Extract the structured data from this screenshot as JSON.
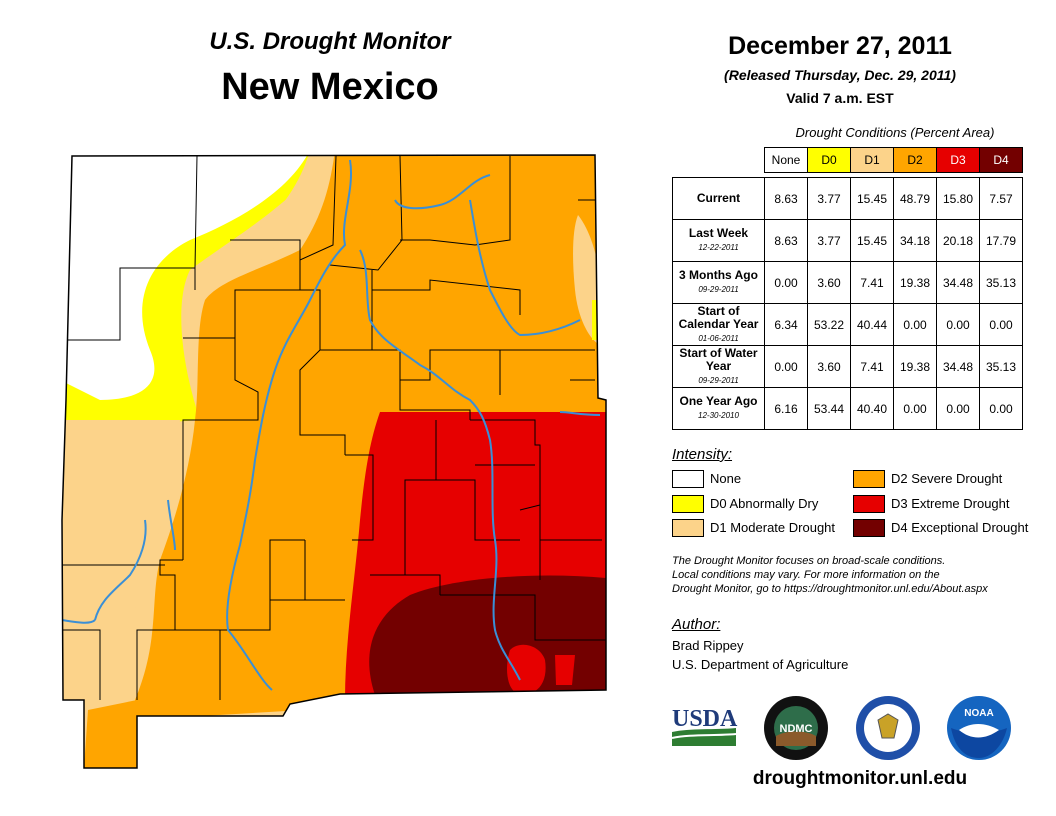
{
  "title": {
    "line1": "U.S. Drought Monitor",
    "line2": "New Mexico"
  },
  "date": {
    "main": "December 27, 2011",
    "released": "(Released Thursday, Dec. 29, 2011)",
    "valid": "Valid 7 a.m. EST"
  },
  "table": {
    "caption": "Drought Conditions (Percent Area)",
    "columns": [
      "None",
      "D0",
      "D1",
      "D2",
      "D3",
      "D4"
    ],
    "column_colors": [
      "#ffffff",
      "#ffff00",
      "#fcd38a",
      "#ffa500",
      "#e60000",
      "#730000"
    ],
    "rows": [
      {
        "label": "Current",
        "sub": "",
        "values": [
          "8.63",
          "3.77",
          "15.45",
          "48.79",
          "15.80",
          "7.57"
        ]
      },
      {
        "label": "Last Week",
        "sub": "12-22-2011",
        "values": [
          "8.63",
          "3.77",
          "15.45",
          "34.18",
          "20.18",
          "17.79"
        ]
      },
      {
        "label": "3 Months Ago",
        "sub": "09-29-2011",
        "values": [
          "0.00",
          "3.60",
          "7.41",
          "19.38",
          "34.48",
          "35.13"
        ]
      },
      {
        "label": "Start of Calendar Year",
        "sub": "01-06-2011",
        "values": [
          "6.34",
          "53.22",
          "40.44",
          "0.00",
          "0.00",
          "0.00"
        ]
      },
      {
        "label": "Start of Water Year",
        "sub": "09-29-2011",
        "values": [
          "0.00",
          "3.60",
          "7.41",
          "19.38",
          "34.48",
          "35.13"
        ]
      },
      {
        "label": "One Year Ago",
        "sub": "12-30-2010",
        "values": [
          "6.16",
          "53.44",
          "40.40",
          "0.00",
          "0.00",
          "0.00"
        ]
      }
    ]
  },
  "legend": {
    "title": "Intensity:",
    "items": [
      {
        "label": "None",
        "color": "#ffffff"
      },
      {
        "label": "D0 Abnormally Dry",
        "color": "#ffff00"
      },
      {
        "label": "D1 Moderate Drought",
        "color": "#fcd38a"
      },
      {
        "label": "D2 Severe Drought",
        "color": "#ffa500"
      },
      {
        "label": "D3 Extreme Drought",
        "color": "#e60000"
      },
      {
        "label": "D4 Exceptional Drought",
        "color": "#730000"
      }
    ]
  },
  "note": {
    "line1": "The Drought Monitor focuses on broad-scale conditions.",
    "line2": "Local conditions may vary. For more information on the",
    "line3": "Drought Monitor, go to https://droughtmonitor.unl.edu/About.aspx"
  },
  "author": {
    "title": "Author:",
    "name": "Brad Rippey",
    "org": "U.S. Department of Agriculture"
  },
  "logos": {
    "usda": "USDA",
    "ndmc": "NDMC",
    "noaa": "NOAA"
  },
  "website": "droughtmonitor.unl.edu",
  "colors": {
    "river": "#3a8fd6",
    "county_line": "#000000"
  }
}
